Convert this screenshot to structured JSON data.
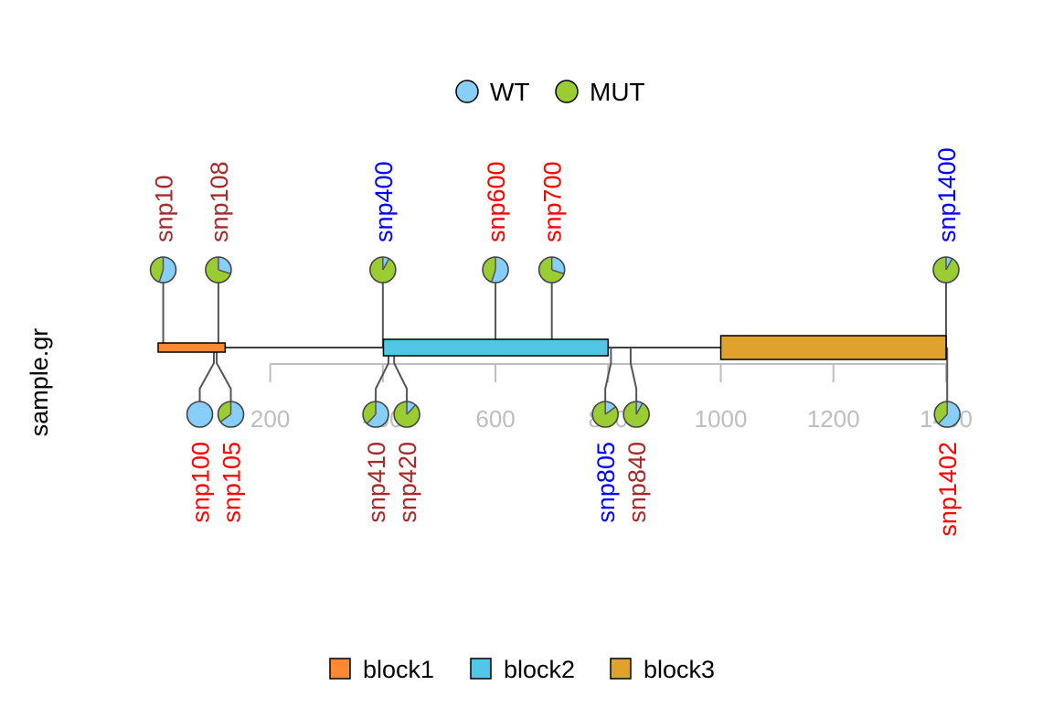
{
  "chart_data": {
    "type": "lollipop-pie",
    "ylabel": "sample.gr",
    "track_line": {
      "start": 1,
      "end": 1400
    },
    "x_axis": {
      "ticks": [
        200,
        400,
        600,
        800,
        1000,
        1200,
        1400
      ],
      "tick_labels": [
        "200",
        "400",
        "600",
        "800",
        "1000",
        "1200",
        "1400"
      ]
    },
    "pie_legend": [
      {
        "name": "WT",
        "color": "#87CEFA"
      },
      {
        "name": "MUT",
        "color": "#9ACD32"
      }
    ],
    "features": [
      {
        "name": "block1",
        "start": 1,
        "end": 120,
        "color": "#FF8833",
        "size": "small"
      },
      {
        "name": "block2",
        "start": 401,
        "end": 800,
        "color": "#51C6E6",
        "size": "medium"
      },
      {
        "name": "block3",
        "start": 1000,
        "end": 1400,
        "color": "#DFA32D",
        "size": "large"
      }
    ],
    "snps": [
      {
        "name": "snp10",
        "pos": 10,
        "side": "top",
        "label_color": "#A52A2A",
        "wt": 0.55,
        "mut": 0.45
      },
      {
        "name": "snp108",
        "pos": 108,
        "side": "top",
        "label_color": "#A52A2A",
        "wt": 0.3,
        "mut": 0.7
      },
      {
        "name": "snp400",
        "pos": 400,
        "side": "top",
        "label_color": "#0000FF",
        "wt": 0.08,
        "mut": 0.92
      },
      {
        "name": "snp600",
        "pos": 600,
        "side": "top",
        "label_color": "#FF0000",
        "wt": 0.55,
        "mut": 0.45
      },
      {
        "name": "snp700",
        "pos": 700,
        "side": "top",
        "label_color": "#FF0000",
        "wt": 0.3,
        "mut": 0.7
      },
      {
        "name": "snp1400",
        "pos": 1400,
        "side": "top",
        "label_color": "#0000FF",
        "wt": 0.08,
        "mut": 0.92
      },
      {
        "name": "snp100",
        "pos": 100,
        "side": "bottom",
        "label_color": "#FF0000",
        "wt": 1.0,
        "mut": 0.0
      },
      {
        "name": "snp105",
        "pos": 105,
        "side": "bottom",
        "label_color": "#FF0000",
        "wt": 0.65,
        "mut": 0.35
      },
      {
        "name": "snp410",
        "pos": 410,
        "side": "bottom",
        "label_color": "#A52A2A",
        "wt": 0.62,
        "mut": 0.38
      },
      {
        "name": "snp420",
        "pos": 420,
        "side": "bottom",
        "label_color": "#A52A2A",
        "wt": 0.12,
        "mut": 0.88
      },
      {
        "name": "snp805",
        "pos": 805,
        "side": "bottom",
        "label_color": "#0000FF",
        "wt": 0.15,
        "mut": 0.85
      },
      {
        "name": "snp840",
        "pos": 840,
        "side": "bottom",
        "label_color": "#A52A2A",
        "wt": 0.08,
        "mut": 0.92
      },
      {
        "name": "snp1402",
        "pos": 1402,
        "side": "bottom",
        "label_color": "#FF0000",
        "wt": 0.62,
        "mut": 0.38
      }
    ]
  }
}
